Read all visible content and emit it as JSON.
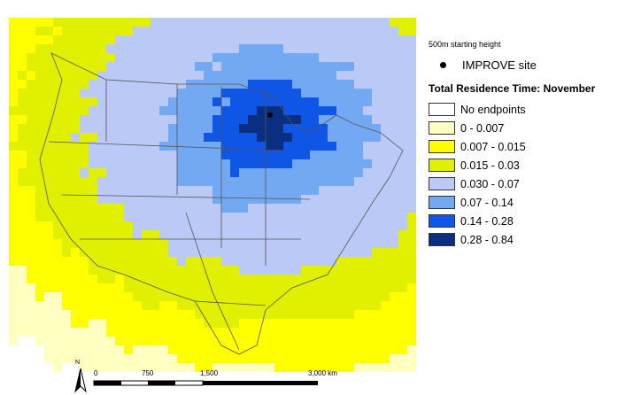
{
  "legend": {
    "subtitle": "500m starting height",
    "site_label": "IMPROVE site",
    "title": "Total Residence Time: November",
    "classes": [
      {
        "label": "No endpoints",
        "color": "#ffffff"
      },
      {
        "label": "0 - 0.007",
        "color": "#ffffc2"
      },
      {
        "label": "0.007 - 0.015",
        "color": "#ffff00"
      },
      {
        "label": "0.015 - 0.03",
        "color": "#e0f000"
      },
      {
        "label": "0.030 - 0.07",
        "color": "#bac9f5"
      },
      {
        "label": "0.07 - 0.14",
        "color": "#73a9f2"
      },
      {
        "label": "0.14 - 0.28",
        "color": "#0f55e6"
      },
      {
        "label": "0.28 - 0.84",
        "color": "#0a2f80"
      }
    ]
  },
  "north_arrow": {
    "label": "N"
  },
  "scale": {
    "ticks": [
      "0",
      "750",
      "1,500",
      "3,000 km"
    ]
  },
  "colors": {
    "map_background": "#ffffff",
    "boundary": "#555555",
    "site_marker": "#000000"
  }
}
